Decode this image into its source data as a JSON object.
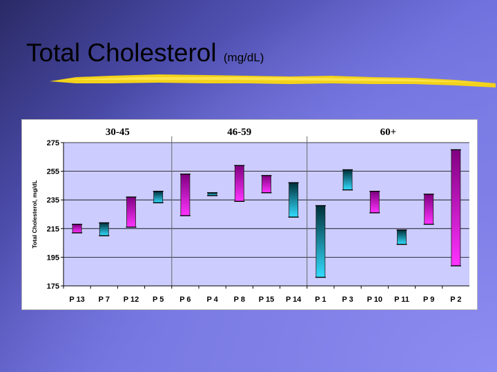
{
  "slide": {
    "title": "Total Cholesterol",
    "title_unit": "(mg/dL)"
  },
  "chart_data": {
    "type": "bar",
    "subtype": "floating range bars",
    "ylabel": "Total Cholesterol, mg/dL",
    "ylim": [
      175,
      275
    ],
    "yticks": [
      175,
      195,
      215,
      235,
      255,
      275
    ],
    "grid": true,
    "groups": [
      {
        "label": "30-45",
        "count": 4
      },
      {
        "label": "46-59",
        "count": 5
      },
      {
        "label": "60+",
        "count": 6
      }
    ],
    "categories": [
      "P 13",
      "P 7",
      "P 12",
      "P 5",
      "P 6",
      "P 4",
      "P 8",
      "P 15",
      "P 14",
      "P 1",
      "P 3",
      "P 10",
      "P 11",
      "P 9",
      "P 2"
    ],
    "bars": [
      {
        "low": 212,
        "high": 218,
        "color": "magenta"
      },
      {
        "low": 210,
        "high": 219,
        "color": "cyan"
      },
      {
        "low": 216,
        "high": 237,
        "color": "magenta"
      },
      {
        "low": 233,
        "high": 241,
        "color": "cyan"
      },
      {
        "low": 224,
        "high": 253,
        "color": "magenta"
      },
      {
        "low": 238,
        "high": 240,
        "color": "cyan"
      },
      {
        "low": 234,
        "high": 259,
        "color": "magenta"
      },
      {
        "low": 240,
        "high": 252,
        "color": "magenta"
      },
      {
        "low": 223,
        "high": 247,
        "color": "cyan"
      },
      {
        "low": 181,
        "high": 231,
        "color": "cyan"
      },
      {
        "low": 242,
        "high": 256,
        "color": "cyan"
      },
      {
        "low": 226,
        "high": 241,
        "color": "magenta"
      },
      {
        "low": 204,
        "high": 214,
        "color": "cyan"
      },
      {
        "low": 218,
        "high": 239,
        "color": "magenta"
      },
      {
        "low": 189,
        "high": 270,
        "color": "magenta"
      }
    ],
    "colors": {
      "magenta_top": "#800080",
      "magenta_bottom": "#ff33ff",
      "cyan_top": "#00303a",
      "cyan_bottom": "#33ddff",
      "plot_background": "#ccccff",
      "gridline": "#000000"
    }
  }
}
